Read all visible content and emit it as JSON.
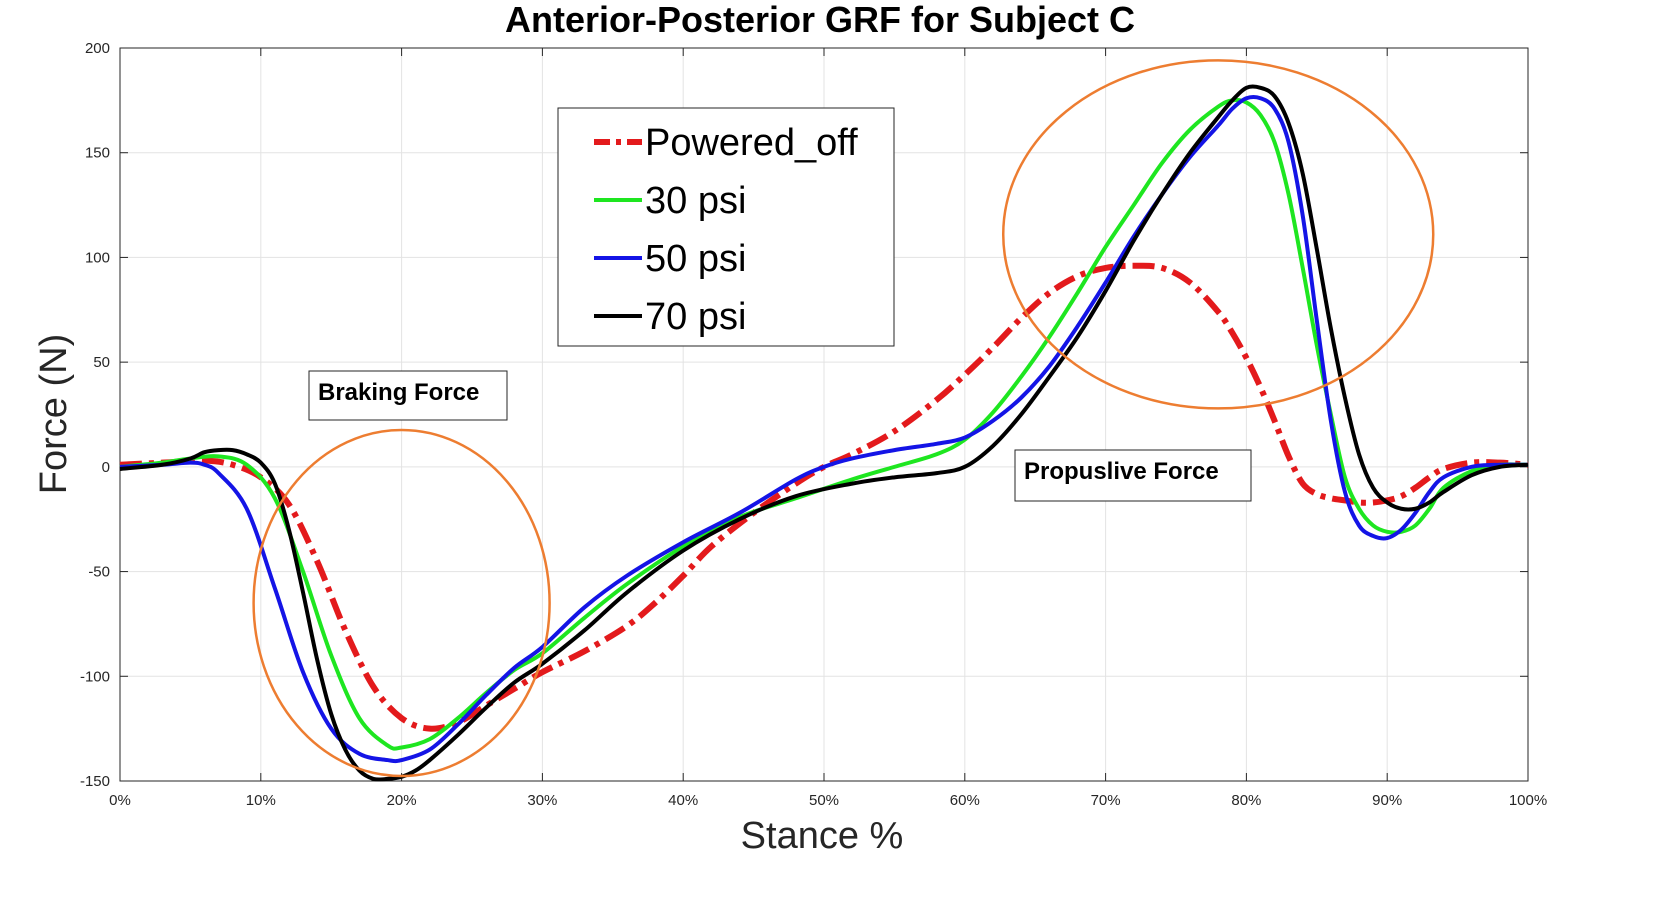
{
  "chart_data": {
    "type": "line",
    "title": "Anterior-Posterior GRF for Subject C",
    "xlabel": "Stance %",
    "ylabel": "Force (N)",
    "xlim": [
      0,
      100
    ],
    "ylim": [
      -150,
      200
    ],
    "grid": true,
    "x_ticks": [
      0,
      10,
      20,
      30,
      40,
      50,
      60,
      70,
      80,
      90,
      100
    ],
    "x_tick_labels": [
      "0%",
      "10%",
      "20%",
      "30%",
      "40%",
      "50%",
      "60%",
      "70%",
      "80%",
      "90%",
      "100%"
    ],
    "y_ticks": [
      -150,
      -100,
      -50,
      0,
      50,
      100,
      150,
      200
    ],
    "y_tick_labels": [
      "-150",
      "-100",
      "-50",
      "0",
      "50",
      "100",
      "150",
      "200"
    ],
    "legend_position": "upper-center",
    "series": [
      {
        "name": "Powered_off",
        "color": "#e31a1c",
        "style": "dash-dot",
        "x": [
          0,
          3,
          6,
          8,
          10,
          12,
          14,
          16,
          18,
          20,
          22,
          24,
          26,
          28,
          30,
          33,
          36,
          38,
          40,
          42,
          45,
          48,
          50,
          52,
          55,
          58,
          60,
          62,
          64,
          66,
          68,
          70,
          72,
          74,
          76,
          78,
          79,
          80,
          81,
          82,
          83,
          84,
          85,
          86,
          87,
          88,
          89,
          90,
          91,
          92,
          93,
          94,
          96,
          98,
          100
        ],
        "y": [
          1,
          2,
          3,
          1,
          -5,
          -18,
          -45,
          -78,
          -105,
          -120,
          -125,
          -122,
          -114,
          -106,
          -98,
          -88,
          -76,
          -65,
          -52,
          -38,
          -22,
          -8,
          0,
          6,
          17,
          32,
          44,
          57,
          71,
          83,
          91,
          95,
          96,
          95,
          88,
          74,
          64,
          52,
          38,
          22,
          5,
          -8,
          -13,
          -15,
          -16,
          -17,
          -17,
          -16,
          -14,
          -10,
          -5,
          -1,
          2,
          2,
          1
        ]
      },
      {
        "name": "30 psi",
        "color": "#1ee620",
        "style": "solid",
        "x": [
          0,
          3,
          5,
          7,
          9,
          11,
          13,
          15,
          17,
          19,
          20,
          22,
          24,
          26,
          28,
          30,
          33,
          36,
          40,
          44,
          48,
          52,
          55,
          58,
          60,
          62,
          64,
          66,
          68,
          70,
          72,
          74,
          76,
          78,
          79,
          80,
          81,
          82,
          83,
          84,
          85,
          86,
          87,
          88,
          89,
          90,
          91,
          92,
          93,
          94,
          96,
          98,
          100
        ],
        "y": [
          0,
          2,
          4,
          5,
          1,
          -15,
          -50,
          -90,
          -120,
          -133,
          -134,
          -130,
          -120,
          -108,
          -97,
          -89,
          -72,
          -56,
          -38,
          -24,
          -15,
          -6,
          0,
          6,
          13,
          26,
          43,
          62,
          83,
          105,
          125,
          145,
          161,
          172,
          175,
          174,
          168,
          155,
          130,
          95,
          58,
          25,
          -5,
          -20,
          -28,
          -31,
          -31,
          -28,
          -20,
          -10,
          -2,
          1,
          1
        ]
      },
      {
        "name": "50 psi",
        "color": "#1414e6",
        "style": "solid",
        "x": [
          0,
          3,
          5,
          6,
          7,
          9,
          11,
          13,
          15,
          17,
          19,
          20,
          22,
          24,
          26,
          28,
          30,
          33,
          36,
          40,
          44,
          48,
          50,
          52,
          55,
          58,
          60,
          62,
          64,
          66,
          68,
          70,
          72,
          74,
          76,
          78,
          79,
          80,
          81,
          82,
          83,
          84,
          85,
          86,
          87,
          88,
          89,
          90,
          91,
          92,
          93,
          94,
          96,
          98,
          100
        ],
        "y": [
          0,
          1,
          2,
          1,
          -3,
          -20,
          -58,
          -98,
          -125,
          -137,
          -140,
          -140,
          -135,
          -123,
          -109,
          -96,
          -86,
          -67,
          -52,
          -36,
          -22,
          -6,
          0,
          4,
          8,
          11,
          14,
          22,
          33,
          48,
          67,
          88,
          110,
          130,
          148,
          163,
          171,
          176,
          176,
          171,
          155,
          120,
          70,
          22,
          -12,
          -28,
          -33,
          -34,
          -30,
          -22,
          -12,
          -5,
          0,
          1,
          1
        ]
      },
      {
        "name": "70 psi",
        "color": "#000000",
        "style": "solid",
        "x": [
          0,
          3,
          5,
          6,
          7,
          8,
          9,
          10,
          11,
          12,
          13,
          14,
          15,
          16,
          17,
          18,
          19,
          20,
          21,
          22,
          24,
          26,
          28,
          30,
          33,
          36,
          40,
          44,
          48,
          52,
          55,
          58,
          60,
          62,
          64,
          66,
          68,
          70,
          72,
          74,
          76,
          78,
          79,
          80,
          81,
          82,
          83,
          84,
          85,
          86,
          87,
          88,
          89,
          90,
          91,
          92,
          93,
          94,
          96,
          98,
          100
        ],
        "y": [
          -1,
          1,
          4,
          7,
          8,
          8,
          6,
          2,
          -8,
          -30,
          -60,
          -92,
          -118,
          -135,
          -145,
          -149,
          -149,
          -148,
          -145,
          -140,
          -128,
          -115,
          -103,
          -94,
          -78,
          -60,
          -40,
          -25,
          -14,
          -8,
          -5,
          -3,
          0,
          10,
          25,
          43,
          62,
          84,
          108,
          130,
          150,
          167,
          175,
          181,
          181,
          177,
          164,
          140,
          104,
          66,
          33,
          6,
          -10,
          -17,
          -20,
          -20,
          -17,
          -12,
          -4,
          0,
          1
        ]
      }
    ],
    "annotations": [
      {
        "text": "Braking Force",
        "target": "trough near 20% stance"
      },
      {
        "text": "Propuslive Force",
        "target": "peak near 80% stance"
      }
    ]
  },
  "colors": {
    "grid": "#e3e3e3",
    "axis": "#262626",
    "ellipse": "#ed7d31"
  }
}
